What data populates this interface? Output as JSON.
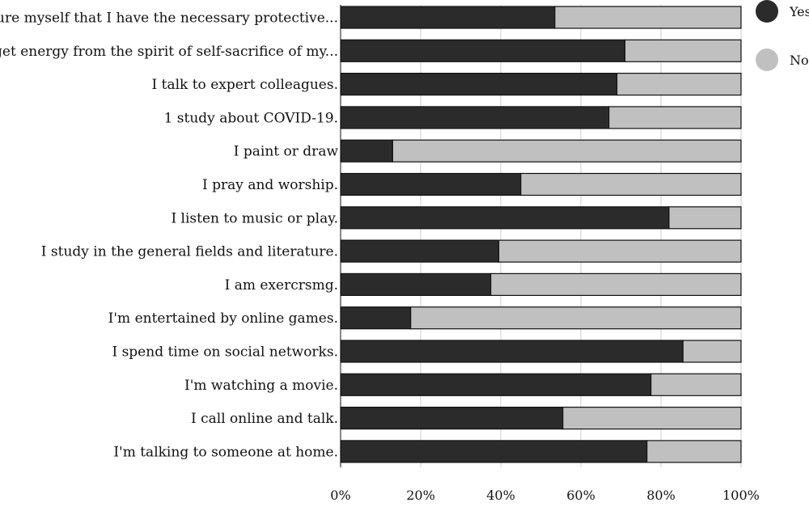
{
  "chart_data": {
    "type": "bar",
    "orientation": "horizontal",
    "stacked": true,
    "percent": true,
    "categories": [
      "I assure myself that I have the necessary protective...",
      "I get energy from the spirit of self-sacrifice of my...",
      "I talk to expert colleagues.",
      "1 study about COVID-19.",
      "I paint or draw",
      "I pray and worship.",
      "I listen to music or play.",
      "I study in the general fields and literature.",
      "I am exercrsmg.",
      "I'm entertained by online games.",
      "I spend time on social networks.",
      "I'm watching a movie.",
      "I call online and talk.",
      "I'm talking to someone at home."
    ],
    "series": [
      {
        "name": "Yes",
        "color": "#2b2b2b",
        "values": [
          53.5,
          71,
          69,
          67,
          13,
          45,
          82,
          39.5,
          37.5,
          17.5,
          85.5,
          77.5,
          55.5,
          76.5
        ]
      },
      {
        "name": "No",
        "color": "#c0c0c0",
        "values": [
          46.5,
          29,
          31,
          33,
          87,
          55,
          18,
          60.5,
          62.5,
          82.5,
          14.5,
          22.5,
          44.5,
          23.5
        ]
      }
    ],
    "xlim": [
      0,
      100
    ],
    "xticks": [
      "0%",
      "20%",
      "40%",
      "60%",
      "80%",
      "100%"
    ],
    "grid": true,
    "legend_position": "top-right",
    "title": "",
    "xlabel": "",
    "ylabel": ""
  }
}
